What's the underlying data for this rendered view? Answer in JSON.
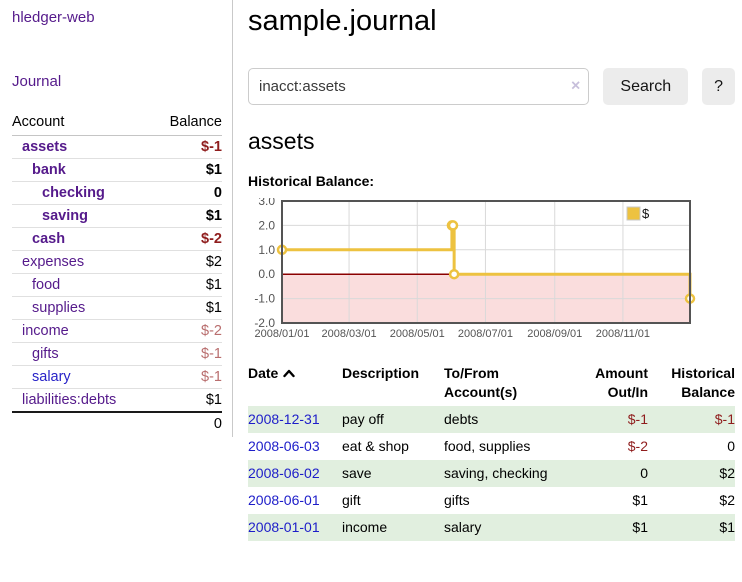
{
  "app_title": "hledger-web",
  "sidebar": {
    "journal_link": "Journal",
    "accounts_table": {
      "headers": {
        "account": "Account",
        "balance": "Balance"
      },
      "rows": [
        {
          "name": "assets",
          "depth": 1,
          "balance": "$-1",
          "in_query": true,
          "negative": true
        },
        {
          "name": "bank",
          "depth": 2,
          "balance": "$1",
          "in_query": true,
          "negative": false
        },
        {
          "name": "checking",
          "depth": 3,
          "balance": "0",
          "in_query": true,
          "negative": false
        },
        {
          "name": "saving",
          "depth": 3,
          "balance": "$1",
          "in_query": true,
          "negative": false
        },
        {
          "name": "cash",
          "depth": 2,
          "balance": "$-2",
          "in_query": true,
          "negative": true
        },
        {
          "name": "expenses",
          "depth": 1,
          "balance": "$2",
          "in_query": false,
          "negative": false
        },
        {
          "name": "food",
          "depth": 2,
          "balance": "$1",
          "in_query": false,
          "negative": false
        },
        {
          "name": "supplies",
          "depth": 2,
          "balance": "$1",
          "in_query": false,
          "negative": false
        },
        {
          "name": "income",
          "depth": 1,
          "balance": "$-2",
          "in_query": false,
          "negative": true
        },
        {
          "name": "gifts",
          "depth": 2,
          "balance": "$-1",
          "in_query": false,
          "negative": true
        },
        {
          "name": "salary",
          "depth": 2,
          "balance": "$-1",
          "in_query": false,
          "negative": true,
          "link_style": "unvisited"
        },
        {
          "name": "liabilities:debts",
          "depth": 1,
          "balance": "$1",
          "in_query": false,
          "negative": false
        }
      ],
      "total": "0"
    }
  },
  "main": {
    "title": "sample.journal",
    "search": {
      "value": "inacct:assets",
      "clear_icon": "×",
      "search_button": "Search",
      "help_button": "?"
    },
    "account_heading": "assets",
    "chart_heading": "Historical Balance:"
  },
  "chart_data": {
    "type": "line",
    "subtype": "step",
    "title": "Historical Balance",
    "series": [
      {
        "name": "$",
        "color": "#edc240",
        "points": [
          [
            "2008-01-01",
            1
          ],
          [
            "2008-06-01",
            2
          ],
          [
            "2008-06-02",
            2
          ],
          [
            "2008-06-03",
            0
          ],
          [
            "2008-12-31",
            -1
          ]
        ]
      }
    ],
    "x_ticks": [
      "2008/01/01",
      "2008/03/01",
      "2008/05/01",
      "2008/07/01",
      "2008/09/01",
      "2008/11/01"
    ],
    "y_ticks": [
      3.0,
      2.0,
      1.0,
      0.0,
      -1.0,
      -2.0
    ],
    "ylim": [
      -2,
      3
    ],
    "x_range": [
      "2008-01-01",
      "2008-12-31"
    ],
    "grid": true,
    "legend_position": "top-right",
    "negative_region_shaded": true
  },
  "register": {
    "headers": [
      "Date",
      "Description",
      "To/From Account(s)",
      "Amount Out/In",
      "Historical Balance"
    ],
    "sort": {
      "column": "Date",
      "direction": "ascending"
    },
    "rows": [
      {
        "date": "2008-12-31",
        "description": "pay off",
        "accounts": "debts",
        "amount": "$-1",
        "amount_negative": true,
        "balance": "$-1",
        "balance_negative": true
      },
      {
        "date": "2008-06-03",
        "description": "eat & shop",
        "accounts": "food, supplies",
        "amount": "$-2",
        "amount_negative": true,
        "balance": "0",
        "balance_negative": false
      },
      {
        "date": "2008-06-02",
        "description": "save",
        "accounts": "saving, checking",
        "amount": "0",
        "amount_negative": false,
        "balance": "$2",
        "balance_negative": false
      },
      {
        "date": "2008-06-01",
        "description": "gift",
        "accounts": "gifts",
        "amount": "$1",
        "amount_negative": false,
        "balance": "$2",
        "balance_negative": false
      },
      {
        "date": "2008-01-01",
        "description": "income",
        "accounts": "salary",
        "amount": "$1",
        "amount_negative": false,
        "balance": "$1",
        "balance_negative": false
      }
    ]
  },
  "colors": {
    "purple": "#551a8b",
    "blue": "#1d1dc9",
    "neg": "#8f1d1d",
    "neg_soft": "#b96e6e",
    "green": "#e1efdf",
    "gold": "#edc240",
    "pink": "#fadddd",
    "zero_red": "#8b0000",
    "grid": "#d9d9d9",
    "chart_border": "#545454"
  }
}
